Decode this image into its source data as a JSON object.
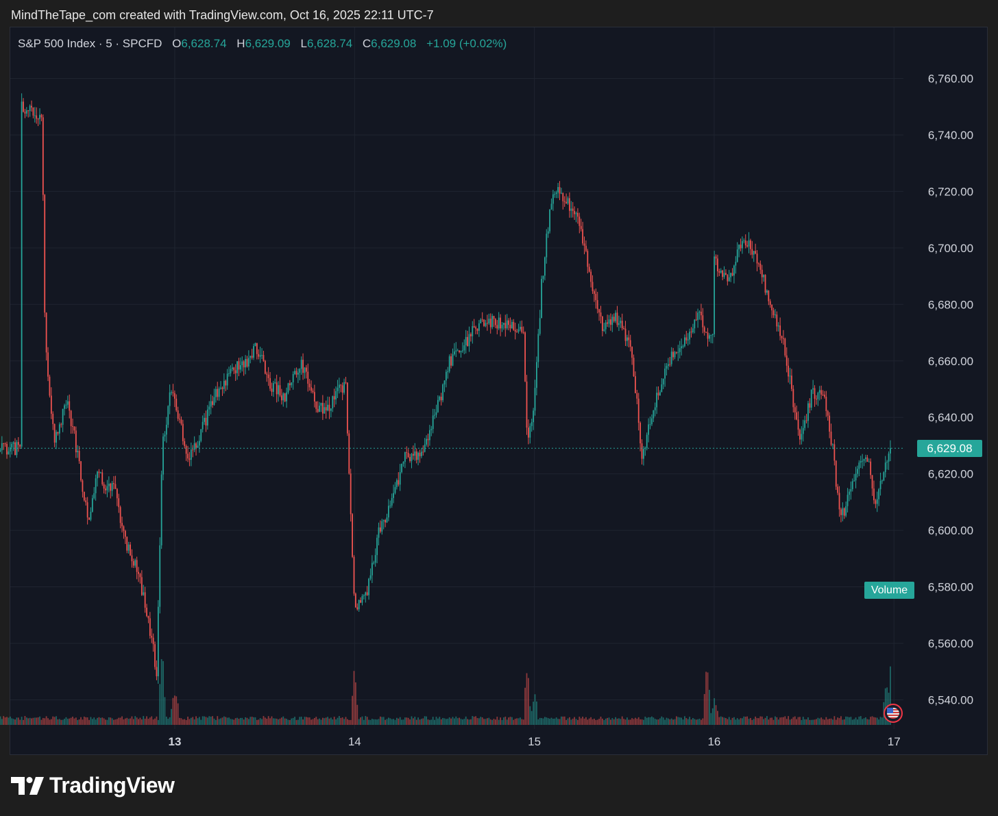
{
  "caption": "MindTheTape_com created with TradingView.com, Oct 16, 2025 22:11 UTC-7",
  "legend": {
    "symbol": "S&P 500 Index · 5 · SPCFD",
    "open_label": "O",
    "open": "6,628.74",
    "high_label": "H",
    "high": "6,629.09",
    "low_label": "L",
    "low": "6,628.74",
    "close_label": "C",
    "close": "6,629.08",
    "change": "+1.09 (+0.02%)"
  },
  "volume_label": "Volume",
  "last_price_label": "6,629.08",
  "brand": "TradingView",
  "colors": {
    "up": "#26a69a",
    "down": "#ef5350",
    "background": "#131722",
    "grid": "#2a2e39"
  },
  "chart_data": {
    "type": "candlestick",
    "interval": "5",
    "y_axis": {
      "ticks": [
        "6,760.00",
        "6,740.00",
        "6,720.00",
        "6,700.00",
        "6,680.00",
        "6,660.00",
        "6,640.00",
        "6,620.00",
        "6,600.00",
        "6,580.00",
        "6,560.00",
        "6,540.00"
      ],
      "tick_values": [
        6760,
        6740,
        6720,
        6700,
        6680,
        6660,
        6640,
        6620,
        6600,
        6580,
        6560,
        6540
      ],
      "ylim": [
        6531,
        6774
      ]
    },
    "x_axis": {
      "ticks": [
        "13",
        "14",
        "15",
        "16",
        "17"
      ]
    },
    "last_price": 6629.08,
    "path": [
      [
        12.14,
        6750
      ],
      [
        12.26,
        6747
      ],
      [
        12.28,
        6665
      ],
      [
        12.3,
        6650
      ],
      [
        12.33,
        6632
      ],
      [
        12.4,
        6646
      ],
      [
        12.44,
        6634
      ],
      [
        12.52,
        6603
      ],
      [
        12.57,
        6620
      ],
      [
        12.62,
        6615
      ],
      [
        12.67,
        6614
      ],
      [
        12.72,
        6596
      ],
      [
        12.8,
        6585
      ],
      [
        12.86,
        6565
      ],
      [
        12.9,
        6550
      ],
      [
        12.93,
        6630
      ],
      [
        12.98,
        6650
      ],
      [
        13.08,
        6625
      ],
      [
        13.13,
        6632
      ],
      [
        13.21,
        6646
      ],
      [
        13.31,
        6656
      ],
      [
        13.4,
        6660
      ],
      [
        13.46,
        6665
      ],
      [
        13.53,
        6652
      ],
      [
        13.61,
        6647
      ],
      [
        13.7,
        6660
      ],
      [
        13.78,
        6645
      ],
      [
        13.84,
        6641
      ],
      [
        13.91,
        6649
      ],
      [
        13.95,
        6652
      ],
      [
        14.0,
        6573
      ],
      [
        14.07,
        6578
      ],
      [
        14.13,
        6598
      ],
      [
        14.21,
        6612
      ],
      [
        14.29,
        6627
      ],
      [
        14.37,
        6626
      ],
      [
        14.48,
        6648
      ],
      [
        14.53,
        6660
      ],
      [
        14.63,
        6667
      ],
      [
        14.68,
        6673
      ],
      [
        14.79,
        6674
      ],
      [
        14.88,
        6672
      ],
      [
        14.94,
        6671
      ],
      [
        14.96,
        6632
      ],
      [
        15.0,
        6645
      ],
      [
        15.04,
        6687
      ],
      [
        15.09,
        6716
      ],
      [
        15.14,
        6720
      ],
      [
        15.24,
        6712
      ],
      [
        15.33,
        6684
      ],
      [
        15.38,
        6672
      ],
      [
        15.46,
        6675
      ],
      [
        15.54,
        6665
      ],
      [
        15.6,
        6625
      ],
      [
        15.65,
        6640
      ],
      [
        15.73,
        6658
      ],
      [
        15.84,
        6668
      ],
      [
        15.91,
        6676
      ],
      [
        15.99,
        6667
      ],
      [
        16.0,
        6695
      ],
      [
        16.08,
        6688
      ],
      [
        16.16,
        6705
      ],
      [
        16.25,
        6694
      ],
      [
        16.31,
        6680
      ],
      [
        16.39,
        6665
      ],
      [
        16.48,
        6630
      ],
      [
        16.54,
        6648
      ],
      [
        16.61,
        6650
      ],
      [
        16.66,
        6628
      ],
      [
        16.7,
        6604
      ],
      [
        16.74,
        6610
      ],
      [
        16.81,
        6626
      ],
      [
        16.86,
        6625
      ],
      [
        16.9,
        6607
      ],
      [
        16.95,
        6623
      ],
      [
        16.97,
        6628.74
      ],
      [
        16.98,
        6629.08
      ]
    ],
    "volume_spikes": [
      [
        12.0,
        5
      ],
      [
        12.93,
        90
      ],
      [
        13.0,
        22
      ],
      [
        14.0,
        70
      ],
      [
        14.96,
        70
      ],
      [
        15.0,
        24
      ],
      [
        15.96,
        80
      ],
      [
        16.0,
        20
      ],
      [
        16.96,
        40
      ],
      [
        16.98,
        68
      ]
    ]
  }
}
